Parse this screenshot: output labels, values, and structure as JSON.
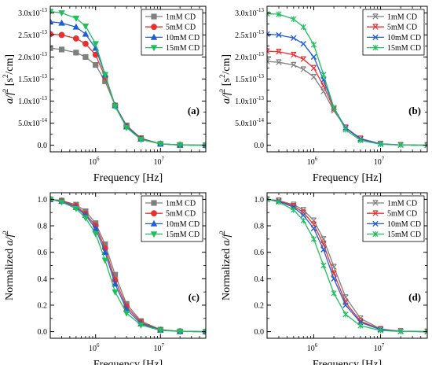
{
  "chart_data": [
    {
      "type": "line",
      "panel_label": "(a)",
      "xlabel": "Frequency [Hz]",
      "ylabel_main": "a/f",
      "ylabel_sup": "2",
      "ylabel_unit": " [s",
      "ylabel_unit_sup": "2",
      "ylabel_unit_end": "/cm]",
      "x_scale": "log",
      "xlim": [
        200000,
        50000000
      ],
      "ylim": [
        -1.5e-14,
        3.15e-13
      ],
      "x_ticks": [
        {
          "value": 1000000,
          "base": "10",
          "exp": "6"
        },
        {
          "value": 10000000,
          "base": "10",
          "exp": "7"
        }
      ],
      "y_ticks": [
        {
          "value": 0,
          "label": "0.0"
        },
        {
          "value": 5e-14,
          "label": "5.0x10",
          "exp": "-14"
        },
        {
          "value": 1e-13,
          "label": "1.0x10",
          "exp": "-13"
        },
        {
          "value": 1.5e-13,
          "label": "1.5x10",
          "exp": "-13"
        },
        {
          "value": 2e-13,
          "label": "2.0x10",
          "exp": "-13"
        },
        {
          "value": 2.5e-13,
          "label": "2.5x10",
          "exp": "-13"
        },
        {
          "value": 3e-13,
          "label": "3.0x10",
          "exp": "-13"
        }
      ],
      "legend_position": "top-right",
      "series": [
        {
          "name": "1mM CD",
          "color": "#7f7f7f",
          "marker": "square",
          "x": [
            200000,
            300000,
            500000,
            700000,
            1000000,
            1400000,
            2000000,
            3000000,
            5000000,
            10000000,
            20000000,
            50000000
          ],
          "y": [
            2.2e-13,
            2.17e-13,
            2.1e-13,
            2e-13,
            1.82e-13,
            1.45e-13,
            9e-14,
            4.5e-14,
            1.6e-14,
            3e-15,
            5e-16,
            0
          ]
        },
        {
          "name": "5mM CD",
          "color": "#e8312f",
          "marker": "circle",
          "x": [
            200000,
            300000,
            500000,
            700000,
            1000000,
            1400000,
            2000000,
            3000000,
            5000000,
            10000000,
            20000000,
            50000000
          ],
          "y": [
            2.52e-13,
            2.5e-13,
            2.42e-13,
            2.3e-13,
            2.05e-13,
            1.55e-13,
            9e-14,
            4.3e-14,
            1.5e-14,
            3e-15,
            5e-16,
            0
          ]
        },
        {
          "name": "10mM CD",
          "color": "#1f5fd6",
          "marker": "triangle",
          "x": [
            200000,
            300000,
            500000,
            700000,
            1000000,
            1400000,
            2000000,
            3000000,
            5000000,
            10000000,
            20000000,
            50000000
          ],
          "y": [
            2.8e-13,
            2.77e-13,
            2.68e-13,
            2.52e-13,
            2.2e-13,
            1.6e-13,
            9e-14,
            4.2e-14,
            1.4e-14,
            3e-15,
            5e-16,
            0
          ]
        },
        {
          "name": "15mM CD",
          "color": "#1fbf5c",
          "marker": "triangle-down",
          "x": [
            200000,
            300000,
            500000,
            700000,
            1000000,
            1400000,
            2000000,
            3000000,
            5000000,
            10000000,
            20000000,
            50000000
          ],
          "y": [
            3.03e-13,
            3e-13,
            2.88e-13,
            2.7e-13,
            2.3e-13,
            1.6e-13,
            8.8e-14,
            4e-14,
            1.3e-14,
            3e-15,
            5e-16,
            0
          ]
        }
      ]
    },
    {
      "type": "line",
      "panel_label": "(b)",
      "xlabel": "Frequency [Hz]",
      "ylabel_main": "a/f",
      "ylabel_sup": "2",
      "ylabel_unit": " [s",
      "ylabel_unit_sup": "2",
      "ylabel_unit_end": "/cm]",
      "x_scale": "log",
      "xlim": [
        200000,
        50000000
      ],
      "ylim": [
        -1.5e-14,
        3.15e-13
      ],
      "x_ticks": [
        {
          "value": 1000000,
          "base": "10",
          "exp": "6"
        },
        {
          "value": 10000000,
          "base": "10",
          "exp": "7"
        }
      ],
      "y_ticks": [
        {
          "value": 0,
          "label": "0.0"
        },
        {
          "value": 5e-14,
          "label": "5.0x10",
          "exp": "-14"
        },
        {
          "value": 1e-13,
          "label": "1.0x10",
          "exp": "-13"
        },
        {
          "value": 1.5e-13,
          "label": "1.5x10",
          "exp": "-13"
        },
        {
          "value": 2e-13,
          "label": "2.0x10",
          "exp": "-13"
        },
        {
          "value": 2.5e-13,
          "label": "2.5x10",
          "exp": "-13"
        },
        {
          "value": 3e-13,
          "label": "3.0x10",
          "exp": "-13"
        }
      ],
      "legend_position": "top-right",
      "series": [
        {
          "name": "1mM CD",
          "color": "#7f7f7f",
          "marker": "x-bar",
          "x": [
            200000,
            300000,
            500000,
            700000,
            1000000,
            1400000,
            2000000,
            3000000,
            5000000,
            10000000,
            20000000,
            50000000
          ],
          "y": [
            1.9e-13,
            1.88e-13,
            1.82e-13,
            1.72e-13,
            1.55e-13,
            1.22e-13,
            7.8e-14,
            4e-14,
            1.5e-14,
            3e-15,
            5e-16,
            0
          ]
        },
        {
          "name": "5mM CD",
          "color": "#e8312f",
          "marker": "x-bar",
          "x": [
            200000,
            300000,
            500000,
            700000,
            1000000,
            1400000,
            2000000,
            3000000,
            5000000,
            10000000,
            20000000,
            50000000
          ],
          "y": [
            2.13e-13,
            2.12e-13,
            2.05e-13,
            1.95e-13,
            1.75e-13,
            1.35e-13,
            8.2e-14,
            4e-14,
            1.5e-14,
            3e-15,
            5e-16,
            0
          ]
        },
        {
          "name": "10mM CD",
          "color": "#1f5fd6",
          "marker": "x",
          "x": [
            200000,
            300000,
            500000,
            700000,
            1000000,
            1400000,
            2000000,
            3000000,
            5000000,
            10000000,
            20000000,
            50000000
          ],
          "y": [
            2.52e-13,
            2.5e-13,
            2.43e-13,
            2.3e-13,
            2e-13,
            1.48e-13,
            8.5e-14,
            3.9e-14,
            1.4e-14,
            3e-15,
            5e-16,
            0
          ]
        },
        {
          "name": "15mM CD",
          "color": "#1fbf5c",
          "marker": "star",
          "x": [
            200000,
            300000,
            500000,
            700000,
            1000000,
            1400000,
            2000000,
            3000000,
            5000000,
            10000000,
            20000000,
            50000000
          ],
          "y": [
            2.98e-13,
            2.97e-13,
            2.86e-13,
            2.68e-13,
            2.28e-13,
            1.6e-13,
            8.5e-14,
            3.5e-14,
            1.1e-14,
            2e-15,
            5e-16,
            0
          ]
        }
      ]
    },
    {
      "type": "line",
      "panel_label": "(c)",
      "xlabel": "Frequency [Hz]",
      "ylabel_prefix": "Normalized ",
      "ylabel_main": "a/f",
      "ylabel_sup": "2",
      "x_scale": "log",
      "xlim": [
        200000,
        50000000
      ],
      "ylim": [
        -0.05,
        1.05
      ],
      "x_ticks": [
        {
          "value": 1000000,
          "base": "10",
          "exp": "6"
        },
        {
          "value": 10000000,
          "base": "10",
          "exp": "7"
        }
      ],
      "y_ticks": [
        {
          "value": 0,
          "label": "0.0"
        },
        {
          "value": 0.2,
          "label": "0.2"
        },
        {
          "value": 0.4,
          "label": "0.4"
        },
        {
          "value": 0.6,
          "label": "0.6"
        },
        {
          "value": 0.8,
          "label": "0.8"
        },
        {
          "value": 1.0,
          "label": "1.0"
        }
      ],
      "legend_position": "top-right",
      "series": [
        {
          "name": "1mM CD",
          "color": "#7f7f7f",
          "marker": "square",
          "x": [
            200000,
            300000,
            500000,
            700000,
            1000000,
            1400000,
            2000000,
            3000000,
            5000000,
            10000000,
            20000000,
            50000000
          ],
          "y": [
            1.0,
            0.99,
            0.96,
            0.91,
            0.82,
            0.66,
            0.43,
            0.21,
            0.08,
            0.015,
            0.002,
            0
          ]
        },
        {
          "name": "5mM CD",
          "color": "#e8312f",
          "marker": "circle",
          "x": [
            200000,
            300000,
            500000,
            700000,
            1000000,
            1400000,
            2000000,
            3000000,
            5000000,
            10000000,
            20000000,
            50000000
          ],
          "y": [
            1.0,
            0.99,
            0.95,
            0.89,
            0.8,
            0.63,
            0.39,
            0.19,
            0.07,
            0.013,
            0.002,
            0
          ]
        },
        {
          "name": "10mM CD",
          "color": "#1f5fd6",
          "marker": "triangle",
          "x": [
            200000,
            300000,
            500000,
            700000,
            1000000,
            1400000,
            2000000,
            3000000,
            5000000,
            10000000,
            20000000,
            50000000
          ],
          "y": [
            1.0,
            0.985,
            0.94,
            0.88,
            0.78,
            0.6,
            0.36,
            0.17,
            0.06,
            0.012,
            0.002,
            0
          ]
        },
        {
          "name": "15mM CD",
          "color": "#1fbf5c",
          "marker": "triangle-down",
          "x": [
            200000,
            300000,
            500000,
            700000,
            1000000,
            1400000,
            2000000,
            3000000,
            5000000,
            10000000,
            20000000,
            50000000
          ],
          "y": [
            1.0,
            0.98,
            0.93,
            0.86,
            0.74,
            0.54,
            0.3,
            0.14,
            0.05,
            0.01,
            0.001,
            0
          ]
        }
      ]
    },
    {
      "type": "line",
      "panel_label": "(d)",
      "xlabel": "Frequency [Hz]",
      "ylabel_prefix": "Normalized ",
      "ylabel_main": "a/f",
      "ylabel_sup": "2",
      "x_scale": "log",
      "xlim": [
        200000,
        50000000
      ],
      "ylim": [
        -0.05,
        1.05
      ],
      "x_ticks": [
        {
          "value": 1000000,
          "base": "10",
          "exp": "6"
        },
        {
          "value": 10000000,
          "base": "10",
          "exp": "7"
        }
      ],
      "y_ticks": [
        {
          "value": 0,
          "label": "0.0"
        },
        {
          "value": 0.2,
          "label": "0.2"
        },
        {
          "value": 0.4,
          "label": "0.4"
        },
        {
          "value": 0.6,
          "label": "0.6"
        },
        {
          "value": 0.8,
          "label": "0.8"
        },
        {
          "value": 1.0,
          "label": "1.0"
        }
      ],
      "legend_position": "top-right",
      "series": [
        {
          "name": "1mM CD",
          "color": "#7f7f7f",
          "marker": "x-bar",
          "x": [
            200000,
            300000,
            500000,
            700000,
            1000000,
            1400000,
            2000000,
            3000000,
            5000000,
            10000000,
            20000000,
            50000000
          ],
          "y": [
            1.0,
            0.99,
            0.96,
            0.92,
            0.84,
            0.7,
            0.49,
            0.26,
            0.1,
            0.02,
            0.003,
            0
          ]
        },
        {
          "name": "5mM CD",
          "color": "#e8312f",
          "marker": "x-bar",
          "x": [
            200000,
            300000,
            500000,
            700000,
            1000000,
            1400000,
            2000000,
            3000000,
            5000000,
            10000000,
            20000000,
            50000000
          ],
          "y": [
            1.0,
            0.99,
            0.95,
            0.9,
            0.81,
            0.66,
            0.44,
            0.22,
            0.08,
            0.017,
            0.003,
            0
          ]
        },
        {
          "name": "10mM CD",
          "color": "#1f5fd6",
          "marker": "x",
          "x": [
            200000,
            300000,
            500000,
            700000,
            1000000,
            1400000,
            2000000,
            3000000,
            5000000,
            10000000,
            20000000,
            50000000
          ],
          "y": [
            1.0,
            0.985,
            0.94,
            0.88,
            0.78,
            0.62,
            0.4,
            0.2,
            0.07,
            0.015,
            0.002,
            0
          ]
        },
        {
          "name": "15mM CD",
          "color": "#1fbf5c",
          "marker": "star",
          "x": [
            200000,
            300000,
            500000,
            700000,
            1000000,
            1400000,
            2000000,
            3000000,
            5000000,
            10000000,
            20000000,
            50000000
          ],
          "y": [
            1.0,
            0.98,
            0.92,
            0.84,
            0.7,
            0.5,
            0.29,
            0.13,
            0.045,
            0.009,
            0.001,
            0
          ]
        }
      ]
    }
  ]
}
